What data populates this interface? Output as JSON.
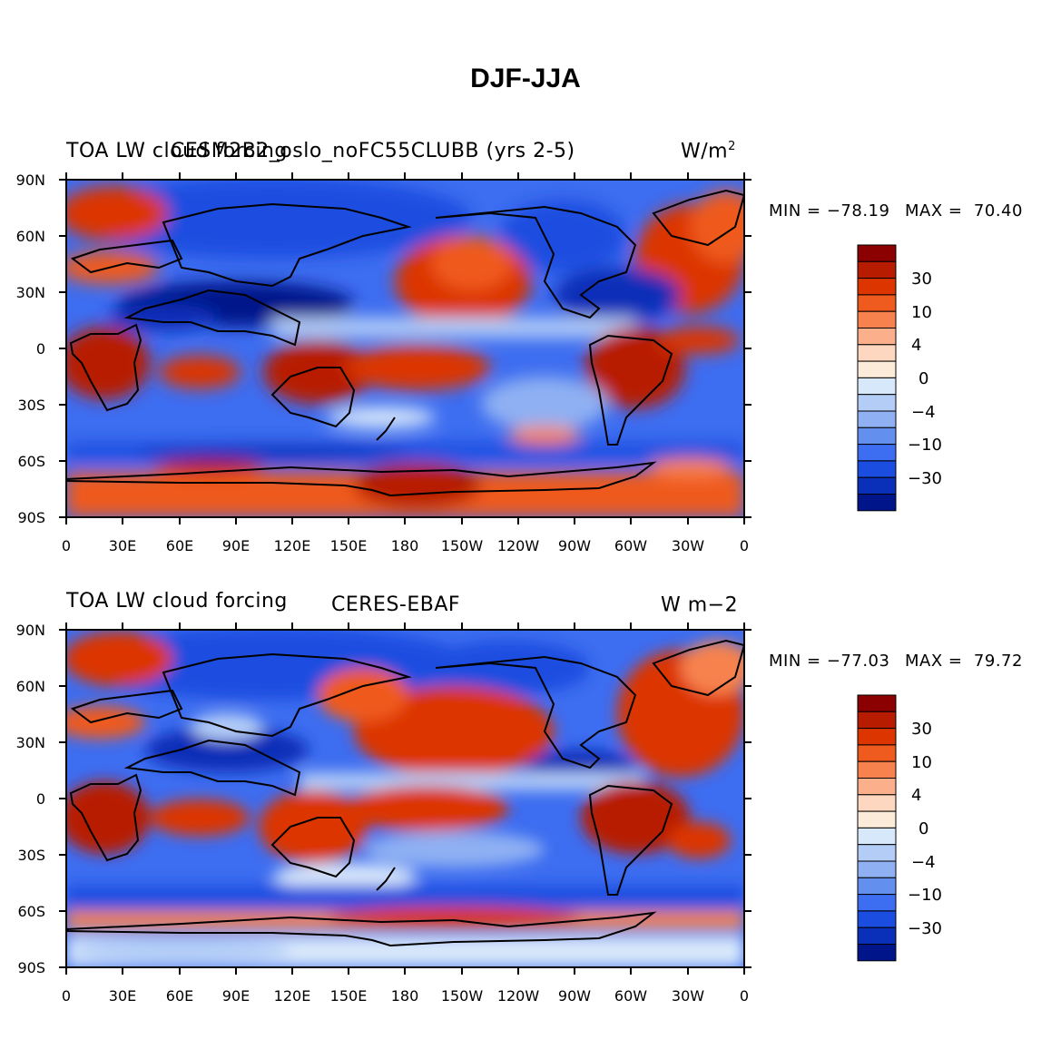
{
  "title": "DJF-JJA",
  "panels": [
    {
      "left_label": "TOA LW cloud forcing",
      "center_label": "CESM2B2_oslo_noFC55CLUBB (yrs 2-5)",
      "units_base": "W/m",
      "units_sup": "2",
      "min_text": "MIN = −78.19",
      "max_text": "MAX =  70.40"
    },
    {
      "left_label": "TOA LW cloud forcing",
      "center_label": "CERES-EBAF",
      "units_base": "W m−2",
      "units_sup": "",
      "min_text": "MIN = −77.03",
      "max_text": "MAX =  79.72"
    }
  ],
  "lat_ticks": [
    "90N",
    "60N",
    "30N",
    "0",
    "30S",
    "60S",
    "90S"
  ],
  "lon_ticks": [
    "0",
    "30E",
    "60E",
    "90E",
    "120E",
    "150E",
    "180",
    "150W",
    "120W",
    "90W",
    "60W",
    "30W",
    "0"
  ],
  "colorbar": {
    "colors": [
      "#8b0000",
      "#b71c00",
      "#dc3500",
      "#ef5a1f",
      "#f7824d",
      "#fbaf8a",
      "#fdd7c0",
      "#fdebd9",
      "#d8e8fb",
      "#b4cdf7",
      "#8fb0f3",
      "#6390ef",
      "#3d6df0",
      "#1a4de0",
      "#0a2fb8",
      "#00158a"
    ],
    "labels": [
      "30",
      "10",
      "4",
      "0",
      "−4",
      "−10",
      "−30"
    ]
  }
}
